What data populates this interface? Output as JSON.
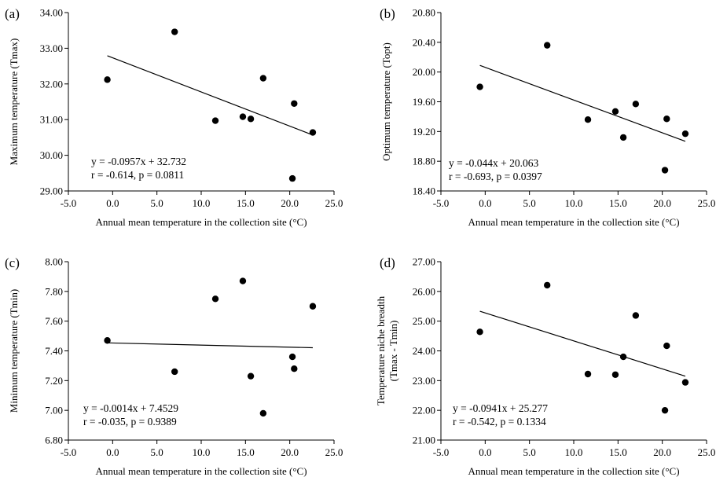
{
  "chart_data": [
    {
      "type": "scatter",
      "panel": "(a)",
      "xlabel": "Annual mean temperature in the collection site (°C)",
      "ylabel": "Maximum temperature (Tmax)",
      "xlim": [
        -5.0,
        25.0
      ],
      "ylim": [
        29.0,
        34.0
      ],
      "xticks": [
        "-5.0",
        "0.0",
        "5.0",
        "10.0",
        "15.0",
        "20.0",
        "25.0"
      ],
      "yticks": [
        "29.00",
        "30.00",
        "31.00",
        "32.00",
        "33.00",
        "34.00"
      ],
      "points": [
        {
          "x": -0.6,
          "y": 32.12
        },
        {
          "x": 7.0,
          "y": 33.46
        },
        {
          "x": 11.6,
          "y": 30.97
        },
        {
          "x": 14.7,
          "y": 31.08
        },
        {
          "x": 15.6,
          "y": 31.02
        },
        {
          "x": 17.0,
          "y": 32.16
        },
        {
          "x": 20.3,
          "y": 29.35
        },
        {
          "x": 20.5,
          "y": 31.45
        },
        {
          "x": 22.6,
          "y": 30.64
        }
      ],
      "trendline": {
        "slope": -0.0957,
        "intercept": 32.732,
        "x_range": [
          -0.6,
          22.6
        ]
      },
      "equation": "y = -0.0957x + 32.732",
      "stats": "r = -0.614, p = 0.0811"
    },
    {
      "type": "scatter",
      "panel": "(b)",
      "xlabel": "Annual mean temperature in the collection site (°C)",
      "ylabel": "Optimum temperature (Topt)",
      "xlim": [
        -5.0,
        25.0
      ],
      "ylim": [
        18.4,
        20.8
      ],
      "xticks": [
        "-5.0",
        "0.0",
        "5.0",
        "10.0",
        "15.0",
        "20.0",
        "25.0"
      ],
      "yticks": [
        "18.40",
        "18.80",
        "19.20",
        "19.60",
        "20.00",
        "20.40",
        "20.80"
      ],
      "points": [
        {
          "x": -0.6,
          "y": 19.8
        },
        {
          "x": 7.0,
          "y": 20.36
        },
        {
          "x": 11.6,
          "y": 19.36
        },
        {
          "x": 14.7,
          "y": 19.47
        },
        {
          "x": 15.6,
          "y": 19.12
        },
        {
          "x": 17.0,
          "y": 19.57
        },
        {
          "x": 20.3,
          "y": 18.68
        },
        {
          "x": 20.5,
          "y": 19.37
        },
        {
          "x": 22.6,
          "y": 19.17
        }
      ],
      "trendline": {
        "slope": -0.044,
        "intercept": 20.063,
        "x_range": [
          -0.6,
          22.6
        ]
      },
      "equation": "y = -0.044x + 20.063",
      "stats": "r = -0.693, p = 0.0397"
    },
    {
      "type": "scatter",
      "panel": "(c)",
      "xlabel": "Annual mean temperature in the collection site (°C)",
      "ylabel": "Minimum temperature (Tmin)",
      "xlim": [
        -5.0,
        25.0
      ],
      "ylim": [
        6.8,
        8.0
      ],
      "xticks": [
        "-5.0",
        "0.0",
        "5.0",
        "10.0",
        "15.0",
        "20.0",
        "25.0"
      ],
      "yticks": [
        "6.80",
        "7.00",
        "7.20",
        "7.40",
        "7.60",
        "7.80",
        "8.00"
      ],
      "points": [
        {
          "x": -0.6,
          "y": 7.47
        },
        {
          "x": 7.0,
          "y": 7.26
        },
        {
          "x": 11.6,
          "y": 7.75
        },
        {
          "x": 14.7,
          "y": 7.87
        },
        {
          "x": 15.6,
          "y": 7.23
        },
        {
          "x": 17.0,
          "y": 6.98
        },
        {
          "x": 20.3,
          "y": 7.36
        },
        {
          "x": 20.5,
          "y": 7.28
        },
        {
          "x": 22.6,
          "y": 7.7
        }
      ],
      "trendline": {
        "slope": -0.0014,
        "intercept": 7.4529,
        "x_range": [
          -0.6,
          22.6
        ]
      },
      "equation": "y = -0.0014x + 7.4529",
      "stats": "r = -0.035, p = 0.9389"
    },
    {
      "type": "scatter",
      "panel": "(d)",
      "xlabel": "Annual mean temperature in the collection site (°C)",
      "ylabel_line1": "Temperature niche breadth",
      "ylabel_line2": "(Tmax - Tmin)",
      "xlim": [
        -5.0,
        25.0
      ],
      "ylim": [
        21.0,
        27.0
      ],
      "xticks": [
        "-5.0",
        "0.0",
        "5.0",
        "10.0",
        "15.0",
        "20.0",
        "25.0"
      ],
      "yticks": [
        "21.00",
        "22.00",
        "23.00",
        "24.00",
        "25.00",
        "26.00",
        "27.00"
      ],
      "points": [
        {
          "x": -0.6,
          "y": 24.64
        },
        {
          "x": 7.0,
          "y": 26.21
        },
        {
          "x": 11.6,
          "y": 23.22
        },
        {
          "x": 14.7,
          "y": 23.2
        },
        {
          "x": 15.6,
          "y": 23.8
        },
        {
          "x": 17.0,
          "y": 25.19
        },
        {
          "x": 20.3,
          "y": 22.0
        },
        {
          "x": 20.5,
          "y": 24.17
        },
        {
          "x": 22.6,
          "y": 22.94
        }
      ],
      "trendline": {
        "slope": -0.0941,
        "intercept": 25.277,
        "x_range": [
          -0.6,
          22.6
        ]
      },
      "equation": "y = -0.0941x + 25.277",
      "stats": "r = -0.542, p = 0.1334"
    }
  ]
}
